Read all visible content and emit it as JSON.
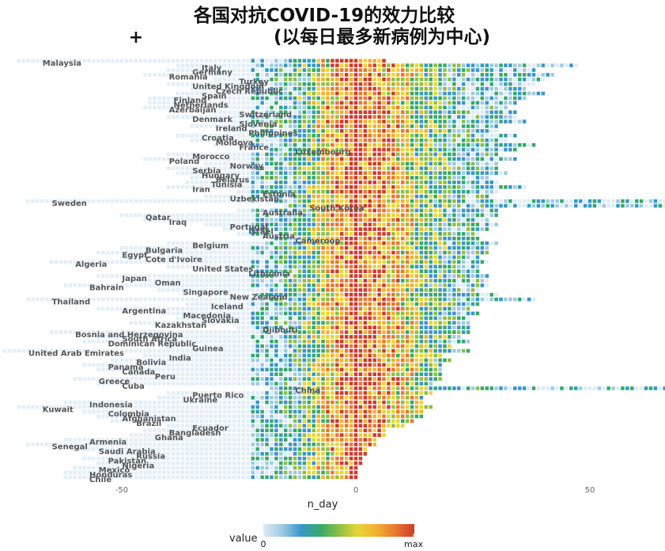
{
  "chart_data": {
    "type": "heatmap",
    "title_line1": "各国对抗COVID-19的效力比较",
    "title_plus": "+",
    "title_line2": "(以每日最多新病例为中心)",
    "xlabel": "n_day",
    "x_ticks": [
      -50,
      0,
      50
    ],
    "xlim": [
      -76,
      66
    ],
    "legend": {
      "title": "value",
      "min_label": "0",
      "max_label": "max"
    },
    "colors": {
      "faint": "#e3eef8",
      "scale": [
        "#deebf7",
        "#9ecae1",
        "#3a96c9",
        "#35a86b",
        "#8dbf45",
        "#e8d535",
        "#f0b12c",
        "#e8782f",
        "#d03a2c"
      ]
    },
    "countries": [
      {
        "name": "Malaysia",
        "start": -72,
        "end": 6
      },
      {
        "name": "Italy",
        "start": -38,
        "end": 47
      },
      {
        "name": "Germany",
        "start": -40,
        "end": 38
      },
      {
        "name": "Romania",
        "start": -45,
        "end": 42
      },
      {
        "name": "Turkey",
        "start": -30,
        "end": 40
      },
      {
        "name": "United Kingdom",
        "start": -40,
        "end": 38
      },
      {
        "name": "Czech Republic",
        "start": -35,
        "end": 36
      },
      {
        "name": "Spain",
        "start": -38,
        "end": 40
      },
      {
        "name": "Finland",
        "start": -44,
        "end": 36
      },
      {
        "name": "Netherlands",
        "start": -44,
        "end": 34
      },
      {
        "name": "Azerbaijan",
        "start": -45,
        "end": 32
      },
      {
        "name": "Switzerland",
        "start": -30,
        "end": 34
      },
      {
        "name": "Denmark",
        "start": -40,
        "end": 34
      },
      {
        "name": "Slovenia",
        "start": -30,
        "end": 36
      },
      {
        "name": "Ireland",
        "start": -35,
        "end": 30
      },
      {
        "name": "Philippines",
        "start": -28,
        "end": 30
      },
      {
        "name": "Croatia",
        "start": -38,
        "end": 34
      },
      {
        "name": "Moldova",
        "start": -35,
        "end": 32
      },
      {
        "name": "France",
        "start": -30,
        "end": 38
      },
      {
        "name": "Luxembourg",
        "start": -18,
        "end": 34
      },
      {
        "name": "Morocco",
        "start": -40,
        "end": 30
      },
      {
        "name": "Poland",
        "start": -45,
        "end": 34
      },
      {
        "name": "Norway",
        "start": -32,
        "end": 30
      },
      {
        "name": "Serbia",
        "start": -40,
        "end": 30
      },
      {
        "name": "Hungary",
        "start": -38,
        "end": 32
      },
      {
        "name": "Belarus",
        "start": -35,
        "end": 28
      },
      {
        "name": "Tunisia",
        "start": -36,
        "end": 30
      },
      {
        "name": "Iran",
        "start": -40,
        "end": 36
      },
      {
        "name": "Estonia",
        "start": -25,
        "end": 30
      },
      {
        "name": "Uzbekistan",
        "start": -32,
        "end": 28
      },
      {
        "name": "Sweden",
        "start": -70,
        "end": 66
      },
      {
        "name": "South Korea",
        "start": -15,
        "end": 66
      },
      {
        "name": "Australia",
        "start": -25,
        "end": 30
      },
      {
        "name": "Qatar",
        "start": -50,
        "end": 30
      },
      {
        "name": "Iraq",
        "start": -45,
        "end": 28
      },
      {
        "name": "Portugal",
        "start": -32,
        "end": 30
      },
      {
        "name": "Israel",
        "start": -28,
        "end": 28
      },
      {
        "name": "Austria",
        "start": -25,
        "end": 26
      },
      {
        "name": "Cameroon",
        "start": -18,
        "end": 26
      },
      {
        "name": "Belgium",
        "start": -40,
        "end": 30
      },
      {
        "name": "Bulgaria",
        "start": -50,
        "end": 28
      },
      {
        "name": "Egypt",
        "start": -55,
        "end": 28
      },
      {
        "name": "Cote d'Ivoire",
        "start": -50,
        "end": 26
      },
      {
        "name": "Algeria",
        "start": -65,
        "end": 28
      },
      {
        "name": "United States",
        "start": -40,
        "end": 26
      },
      {
        "name": "Lithuania",
        "start": -28,
        "end": 26
      },
      {
        "name": "Japan",
        "start": -55,
        "end": 28
      },
      {
        "name": "Oman",
        "start": -48,
        "end": 28
      },
      {
        "name": "Bahrain",
        "start": -62,
        "end": 28
      },
      {
        "name": "Singapore",
        "start": -42,
        "end": 26
      },
      {
        "name": "New Zealand",
        "start": -32,
        "end": 30
      },
      {
        "name": "Thailand",
        "start": -70,
        "end": 38
      },
      {
        "name": "Iceland",
        "start": -36,
        "end": 26
      },
      {
        "name": "Argentina",
        "start": -55,
        "end": 24
      },
      {
        "name": "Macedonia",
        "start": -42,
        "end": 26
      },
      {
        "name": "Slovakia",
        "start": -38,
        "end": 24
      },
      {
        "name": "Kazakhstan",
        "start": -48,
        "end": 24
      },
      {
        "name": "Djibouti",
        "start": -25,
        "end": 24
      },
      {
        "name": "Bosnia and Herzegovina",
        "start": -65,
        "end": 24
      },
      {
        "name": "South Africa",
        "start": -55,
        "end": 22
      },
      {
        "name": "Dominican Republic",
        "start": -58,
        "end": 24
      },
      {
        "name": "Guinea",
        "start": -40,
        "end": 20
      },
      {
        "name": "United Arab Emirates",
        "start": -75,
        "end": 24
      },
      {
        "name": "India",
        "start": -45,
        "end": 18
      },
      {
        "name": "Bolivia",
        "start": -52,
        "end": 20
      },
      {
        "name": "Panama",
        "start": -58,
        "end": 18
      },
      {
        "name": "Canada",
        "start": -55,
        "end": 18
      },
      {
        "name": "Peru",
        "start": -48,
        "end": 18
      },
      {
        "name": "Greece",
        "start": -60,
        "end": 18
      },
      {
        "name": "Cuba",
        "start": -55,
        "end": 16
      },
      {
        "name": "China",
        "start": -18,
        "end": 66
      },
      {
        "name": "Puerto Rico",
        "start": -40,
        "end": 16
      },
      {
        "name": "Ukraine",
        "start": -42,
        "end": 14
      },
      {
        "name": "Indonesia",
        "start": -62,
        "end": 14
      },
      {
        "name": "Kuwait",
        "start": -72,
        "end": 16
      },
      {
        "name": "Colombia",
        "start": -58,
        "end": 14
      },
      {
        "name": "Afghanistan",
        "start": -55,
        "end": 14
      },
      {
        "name": "Brazil",
        "start": -52,
        "end": 12
      },
      {
        "name": "Ecuador",
        "start": -40,
        "end": 10
      },
      {
        "name": "Bangladesh",
        "start": -45,
        "end": 6
      },
      {
        "name": "Ghana",
        "start": -48,
        "end": 6
      },
      {
        "name": "Armenia",
        "start": -62,
        "end": 4
      },
      {
        "name": "Senegal",
        "start": -70,
        "end": 4
      },
      {
        "name": "Saudi Arabia",
        "start": -60,
        "end": 2
      },
      {
        "name": "Russia",
        "start": -52,
        "end": 2
      },
      {
        "name": "Pakistan",
        "start": -58,
        "end": 1
      },
      {
        "name": "Nigeria",
        "start": -55,
        "end": 1
      },
      {
        "name": "Mexico",
        "start": -60,
        "end": 0
      },
      {
        "name": "Honduras",
        "start": -62,
        "end": 0
      },
      {
        "name": "Chile",
        "start": -62,
        "end": 0
      }
    ]
  }
}
